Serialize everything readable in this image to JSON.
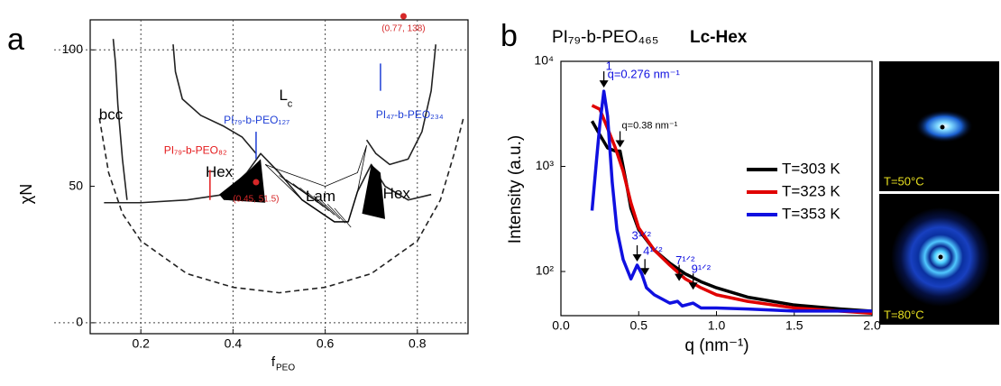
{
  "chart_data": [
    {
      "type": "line",
      "panel_label": "a",
      "xlabel": "f",
      "xlabel_sub": "PEO",
      "ylabel": "χN",
      "xlim": [
        0.09,
        0.91
      ],
      "ylim": [
        -4,
        111
      ],
      "xticks": [
        {
          "value": 0.2,
          "label": "0.2"
        },
        {
          "value": 0.4,
          "label": "0.4"
        },
        {
          "value": 0.6,
          "label": "0.6"
        },
        {
          "value": 0.8,
          "label": "0.8"
        }
      ],
      "yticks": [
        0,
        50,
        100
      ],
      "grid": true,
      "series": [
        {
          "color": "#222222",
          "dash": true,
          "x": [
            0.11,
            0.13,
            0.16,
            0.2,
            0.3,
            0.4,
            0.5,
            0.6,
            0.7,
            0.8,
            0.85,
            0.88,
            0.9
          ],
          "values": [
            75,
            55,
            40,
            30,
            18,
            13,
            11,
            13,
            18,
            30,
            45,
            62,
            75
          ]
        },
        {
          "color": "#222222",
          "dash": false,
          "x": [
            0.12,
            0.2,
            0.3,
            0.38,
            0.43,
            0.46,
            0.5,
            0.55,
            0.62,
            0.65,
            0.67,
            0.7,
            0.73,
            0.78,
            0.83
          ],
          "values": [
            44,
            44,
            45,
            47,
            55,
            62,
            55,
            45,
            37,
            37,
            48,
            58,
            50,
            45,
            47
          ]
        },
        {
          "color": "#222222",
          "dash": false,
          "x": [
            0.14,
            0.145,
            0.15,
            0.16,
            0.17
          ],
          "values": [
            104,
            95,
            80,
            60,
            45
          ]
        },
        {
          "color": "#222222",
          "dash": false,
          "x": [
            0.27,
            0.275,
            0.29,
            0.33,
            0.38,
            0.42,
            0.45
          ],
          "values": [
            102,
            92,
            82,
            76,
            72,
            68,
            62
          ]
        },
        {
          "color": "#222222",
          "dash": false,
          "x": [
            0.69,
            0.71,
            0.74,
            0.78,
            0.81,
            0.83,
            0.84
          ],
          "values": [
            67,
            62,
            58,
            60,
            70,
            85,
            102
          ]
        }
      ],
      "points": {
        "color": "#d62728",
        "x": [
          0.45,
          0.77
        ],
        "values": [
          51.5,
          138
        ],
        "labels": [
          "(0.45, 51.5)",
          "(0.77, 138)"
        ]
      },
      "phase_labels": [
        "bcc",
        "Hex",
        "Lam",
        "Hex"
      ],
      "lc_label": "L",
      "lc_sub": "c",
      "samples": [
        {
          "label": "PI₇₉-b-PEO₈₂",
          "color": "#e41a1c",
          "x": 0.35
        },
        {
          "label": "PI₇₉-b-PEO₁₂₇",
          "color": "#1f3fd6",
          "x": 0.45
        },
        {
          "label": "PI₄₇-b-PEO₂₃₄",
          "color": "#1f3fd6",
          "x": 0.72
        }
      ]
    },
    {
      "type": "line",
      "panel_label": "b",
      "title": "PI₇₉-b-PEO₄₆₅",
      "title_bold": "Lc-Hex",
      "xlabel": "q (nm⁻¹)",
      "ylabel": "Intensity (a.u.)",
      "log_y": true,
      "xlim": [
        0,
        2
      ],
      "ylim": [
        38,
        10000
      ],
      "xticks": [
        {
          "value": 0,
          "label": "0.0"
        },
        {
          "value": 0.5,
          "label": "0.5"
        },
        {
          "value": 1,
          "label": "1.0"
        },
        {
          "value": 1.5,
          "label": "1.5"
        },
        {
          "value": 2,
          "label": "2.0"
        }
      ],
      "yticks": [
        {
          "value": 100,
          "label": "10²"
        },
        {
          "value": 1000,
          "label": "10³"
        },
        {
          "value": 10000,
          "label": "10⁴"
        }
      ],
      "legend": "right",
      "series": [
        {
          "name": "T=303 K",
          "color": "#000000",
          "x": [
            0.2,
            0.25,
            0.3,
            0.35,
            0.38,
            0.42,
            0.45,
            0.5,
            0.6,
            0.7,
            0.8,
            0.9,
            1.0,
            1.2,
            1.5,
            1.8,
            2.0
          ],
          "values": [
            2700,
            2000,
            1500,
            1400,
            1400,
            700,
            400,
            250,
            160,
            120,
            95,
            80,
            70,
            57,
            48,
            44,
            42
          ]
        },
        {
          "name": "T=323 K",
          "color": "#e00000",
          "x": [
            0.2,
            0.25,
            0.3,
            0.35,
            0.4,
            0.45,
            0.5,
            0.6,
            0.7,
            0.8,
            0.9,
            1.0,
            1.2,
            1.5,
            2.0
          ],
          "values": [
            3800,
            3500,
            2300,
            1500,
            900,
            450,
            260,
            160,
            115,
            85,
            70,
            60,
            52,
            45,
            40
          ]
        },
        {
          "name": "T=353 K",
          "color": "#1010e0",
          "x": [
            0.2,
            0.23,
            0.25,
            0.276,
            0.3,
            0.33,
            0.36,
            0.4,
            0.45,
            0.49,
            0.52,
            0.55,
            0.6,
            0.7,
            0.75,
            0.78,
            0.85,
            0.9,
            1.0,
            1.2,
            1.5,
            2.0
          ],
          "values": [
            380,
            1200,
            2500,
            5200,
            3000,
            700,
            250,
            130,
            85,
            115,
            95,
            70,
            60,
            50,
            52,
            47,
            50,
            45,
            45,
            44,
            42,
            42
          ]
        }
      ],
      "arrows": [
        {
          "label": "q=0.276 nm⁻¹",
          "color": "#1010e0",
          "x": 0.276,
          "value": 5200
        },
        {
          "label": "q=0.38 nm⁻¹",
          "color": "#000000",
          "x": 0.38,
          "value": 1400
        },
        {
          "label": "3¹ᐟ²",
          "color": "#1010e0",
          "x": 0.49,
          "value": 115
        },
        {
          "label": "4¹ᐟ²",
          "color": "#1010e0",
          "x": 0.54,
          "value": 85
        },
        {
          "label": "7¹ᐟ²",
          "color": "#1010e0",
          "x": 0.76,
          "value": 75
        },
        {
          "label": "9¹ᐟ²",
          "color": "#1010e0",
          "x": 0.85,
          "value": 62
        }
      ],
      "peak_order": "1",
      "images": [
        "T=50°C",
        "T=80°C"
      ]
    }
  ]
}
